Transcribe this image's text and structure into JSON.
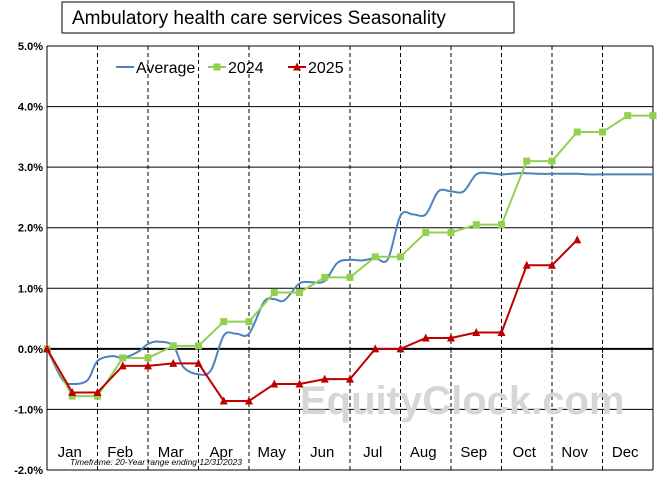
{
  "chart_data": {
    "type": "line",
    "title": "Ambulatory health care services Seasonality",
    "footnote": "Timeframe: 20-Year range ending 12/31/2023",
    "watermark": "EquityClock.com",
    "y_ticks": [
      "5.0%",
      "4.0%",
      "3.0%",
      "2.0%",
      "1.0%",
      "0.0%",
      "-1.0%",
      "-2.0%"
    ],
    "ylim": [
      -2.0,
      5.0
    ],
    "months": [
      "Jan",
      "Feb",
      "Mar",
      "Apr",
      "May",
      "Jun",
      "Jul",
      "Aug",
      "Sep",
      "Oct",
      "Nov",
      "Dec"
    ],
    "legend": [
      "Average",
      "2024",
      "2025"
    ],
    "series": [
      {
        "name": "Average",
        "color": "#4f81bd",
        "marker": "none",
        "x": [
          0.0,
          0.3,
          0.5,
          0.8,
          1.0,
          1.3,
          1.5,
          1.8,
          2.0,
          2.2,
          2.5,
          2.7,
          3.0,
          3.25,
          3.5,
          3.75,
          4.0,
          4.3,
          4.5,
          4.7,
          5.0,
          5.25,
          5.5,
          5.75,
          6.0,
          6.25,
          6.5,
          6.75,
          7.0,
          7.25,
          7.5,
          7.75,
          8.0,
          8.25,
          8.5,
          8.75,
          9.0,
          9.3,
          9.5,
          9.75,
          10.0,
          10.3,
          10.5,
          10.75,
          11.0,
          11.25,
          11.5,
          11.75,
          12.0
        ],
        "values": [
          0.0,
          -0.5,
          -0.58,
          -0.52,
          -0.2,
          -0.12,
          -0.15,
          -0.05,
          0.08,
          0.12,
          0.05,
          -0.3,
          -0.42,
          -0.35,
          0.22,
          0.25,
          0.25,
          0.78,
          0.82,
          0.8,
          1.08,
          1.1,
          1.12,
          1.42,
          1.47,
          1.46,
          1.5,
          1.48,
          2.2,
          2.22,
          2.22,
          2.6,
          2.6,
          2.6,
          2.88,
          2.9,
          2.88,
          2.9,
          2.9,
          2.89,
          2.89,
          2.89,
          2.89,
          2.88,
          2.88,
          2.88,
          2.88,
          2.88,
          2.88
        ]
      },
      {
        "name": "2024",
        "color": "#92d050",
        "marker": "square",
        "x": [
          0.0,
          0.5,
          1.0,
          1.5,
          2.0,
          2.5,
          3.0,
          3.5,
          4.0,
          4.5,
          5.0,
          5.5,
          6.0,
          6.5,
          7.0,
          7.5,
          8.0,
          8.5,
          9.0,
          9.5,
          10.0,
          10.5,
          11.0,
          11.5,
          12.0
        ],
        "values": [
          0.0,
          -0.78,
          -0.78,
          -0.15,
          -0.15,
          0.05,
          0.05,
          0.45,
          0.45,
          0.93,
          0.93,
          1.18,
          1.18,
          1.52,
          1.52,
          1.92,
          1.92,
          2.05,
          2.05,
          3.1,
          3.1,
          3.58,
          3.58,
          3.85,
          3.85
        ]
      },
      {
        "name": "2025",
        "color": "#c00000",
        "marker": "triangle",
        "x": [
          0.0,
          0.5,
          1.0,
          1.5,
          2.0,
          2.5,
          3.0,
          3.5,
          4.0,
          4.5,
          5.0,
          5.5,
          6.0,
          6.5,
          7.0,
          7.5,
          8.0,
          8.5,
          9.0,
          9.5,
          10.0,
          10.5
        ],
        "values": [
          0.0,
          -0.72,
          -0.72,
          -0.28,
          -0.28,
          -0.24,
          -0.24,
          -0.86,
          -0.86,
          -0.58,
          -0.58,
          -0.5,
          -0.5,
          0.0,
          0.0,
          0.18,
          0.18,
          0.27,
          0.27,
          1.38,
          1.38,
          1.8
        ]
      }
    ]
  }
}
